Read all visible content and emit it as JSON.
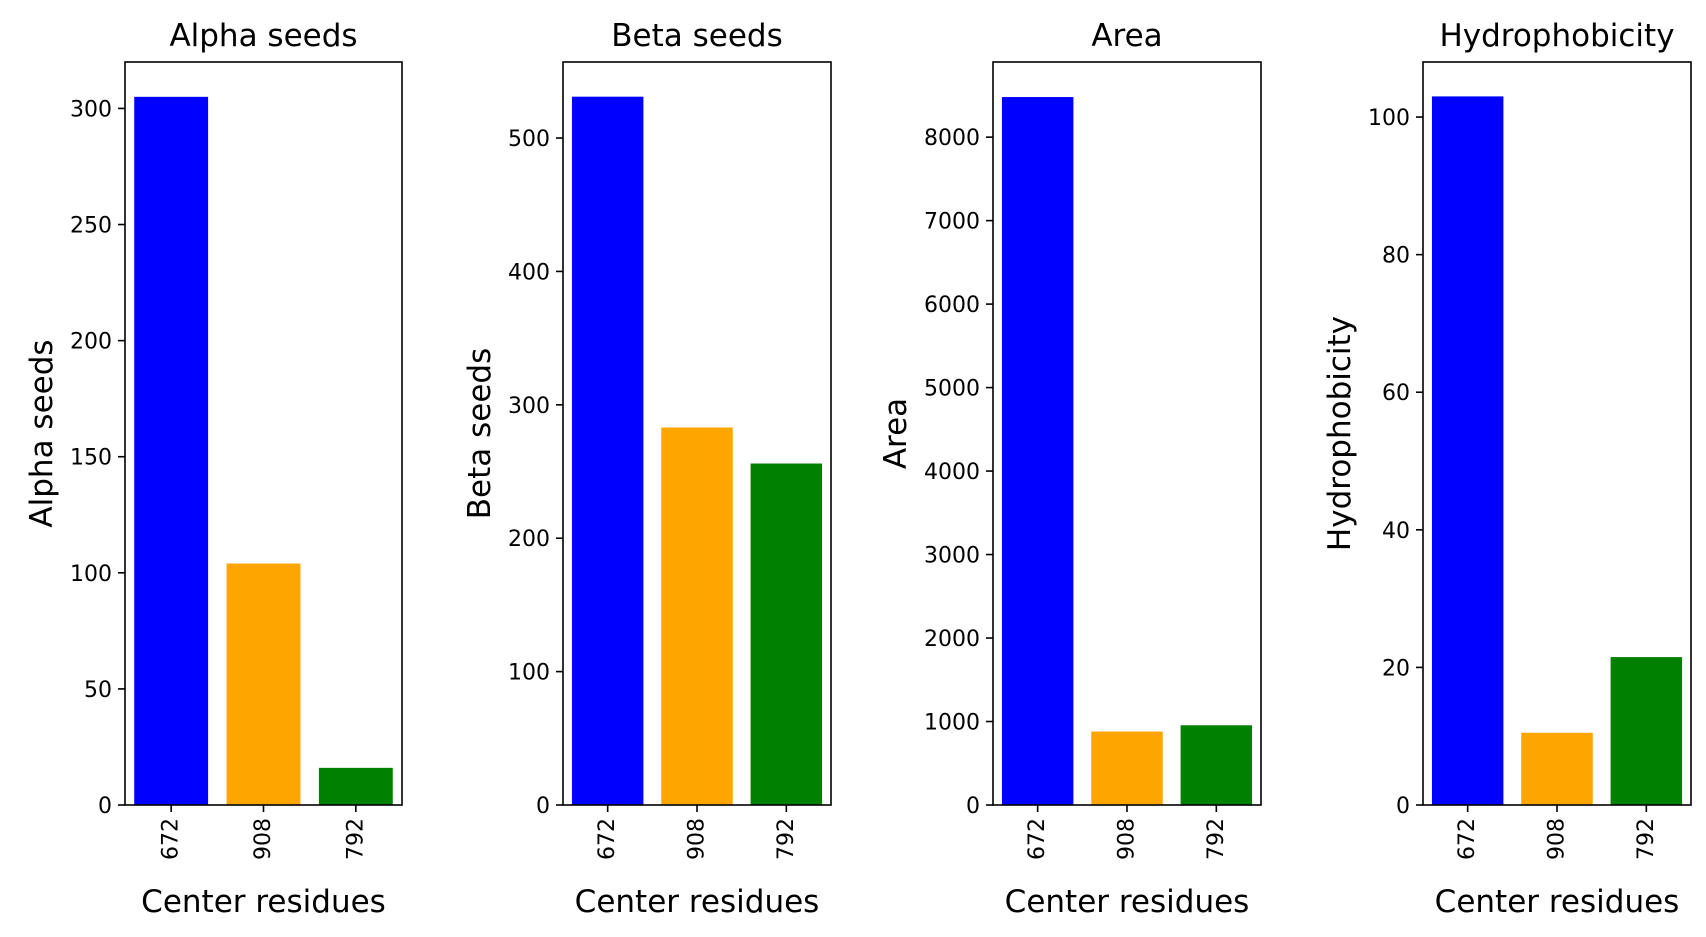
{
  "chart_data": [
    {
      "type": "bar",
      "title": "Alpha seeds",
      "xlabel": "Center residues",
      "ylabel": "Alpha seeds",
      "categories": [
        "672",
        "908",
        "792"
      ],
      "values": [
        305,
        104,
        16
      ],
      "colors": [
        "#0000ff",
        "#ffa500",
        "#008000"
      ],
      "ylim": [
        0,
        320
      ],
      "yticks": [
        0,
        50,
        100,
        150,
        200,
        250,
        300
      ],
      "grid": false,
      "xtick_rotation": 90
    },
    {
      "type": "bar",
      "title": "Beta seeds",
      "xlabel": "Center residues",
      "ylabel": "Beta seeds",
      "categories": [
        "672",
        "908",
        "792"
      ],
      "values": [
        531,
        283,
        256
      ],
      "colors": [
        "#0000ff",
        "#ffa500",
        "#008000"
      ],
      "ylim": [
        0,
        557
      ],
      "yticks": [
        0,
        100,
        200,
        300,
        400,
        500
      ],
      "grid": false,
      "xtick_rotation": 90
    },
    {
      "type": "bar",
      "title": "Area",
      "xlabel": "Center residues",
      "ylabel": "Area",
      "categories": [
        "672",
        "908",
        "792"
      ],
      "values": [
        8480,
        880,
        955
      ],
      "colors": [
        "#0000ff",
        "#ffa500",
        "#008000"
      ],
      "ylim": [
        0,
        8900
      ],
      "yticks": [
        0,
        1000,
        2000,
        3000,
        4000,
        5000,
        6000,
        7000,
        8000
      ],
      "grid": false,
      "xtick_rotation": 90
    },
    {
      "type": "bar",
      "title": "Hydrophobicity",
      "xlabel": "Center residues",
      "ylabel": "Hydrophobicity",
      "categories": [
        "672",
        "908",
        "792"
      ],
      "values": [
        103,
        10.5,
        21.5
      ],
      "colors": [
        "#0000ff",
        "#ffa500",
        "#008000"
      ],
      "ylim": [
        0,
        108
      ],
      "yticks": [
        0,
        20,
        40,
        60,
        80,
        100
      ],
      "grid": false,
      "xtick_rotation": 90
    }
  ]
}
